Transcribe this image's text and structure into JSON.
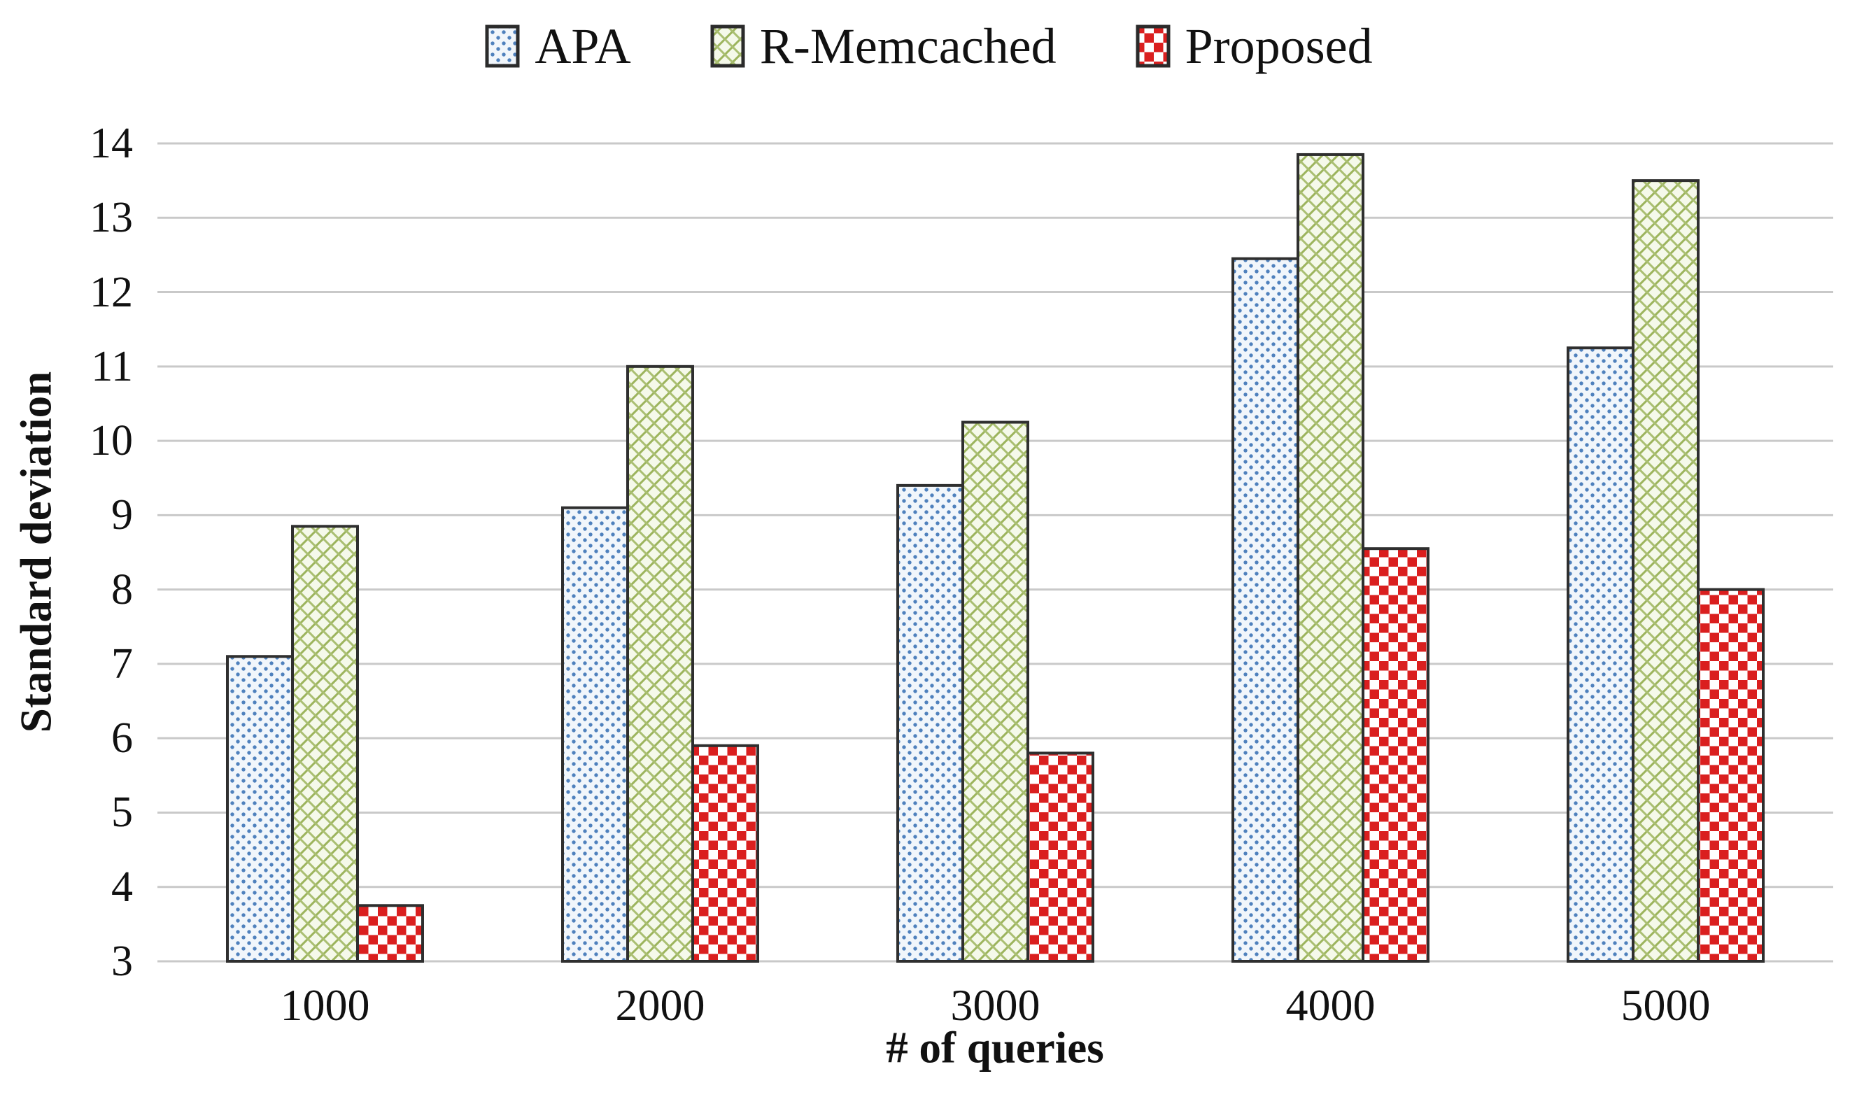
{
  "chart_data": {
    "type": "bar",
    "title": "",
    "categories": [
      "1000",
      "2000",
      "3000",
      "4000",
      "5000"
    ],
    "series": [
      {
        "name": "APA",
        "values": [
          7.1,
          9.1,
          9.4,
          12.45,
          11.25
        ],
        "pattern": "dots",
        "color": "#4f81bd"
      },
      {
        "name": "R-Memcached",
        "values": [
          8.85,
          11.0,
          10.25,
          13.85,
          13.5
        ],
        "pattern": "weave",
        "color": "#9bbb59"
      },
      {
        "name": "Proposed",
        "values": [
          3.75,
          5.9,
          5.8,
          8.55,
          8.0
        ],
        "pattern": "checker",
        "color": "#da1f1f"
      }
    ],
    "xlabel": "# of queries",
    "ylabel": "Standard deviation",
    "ylim": [
      3,
      14
    ],
    "yticks": [
      3,
      4,
      5,
      6,
      7,
      8,
      9,
      10,
      11,
      12,
      13,
      14
    ],
    "grid": true,
    "gridline_color": "#c9c9c9",
    "bar_border_color": "#2f2f2f",
    "legend_position": "top-center"
  }
}
